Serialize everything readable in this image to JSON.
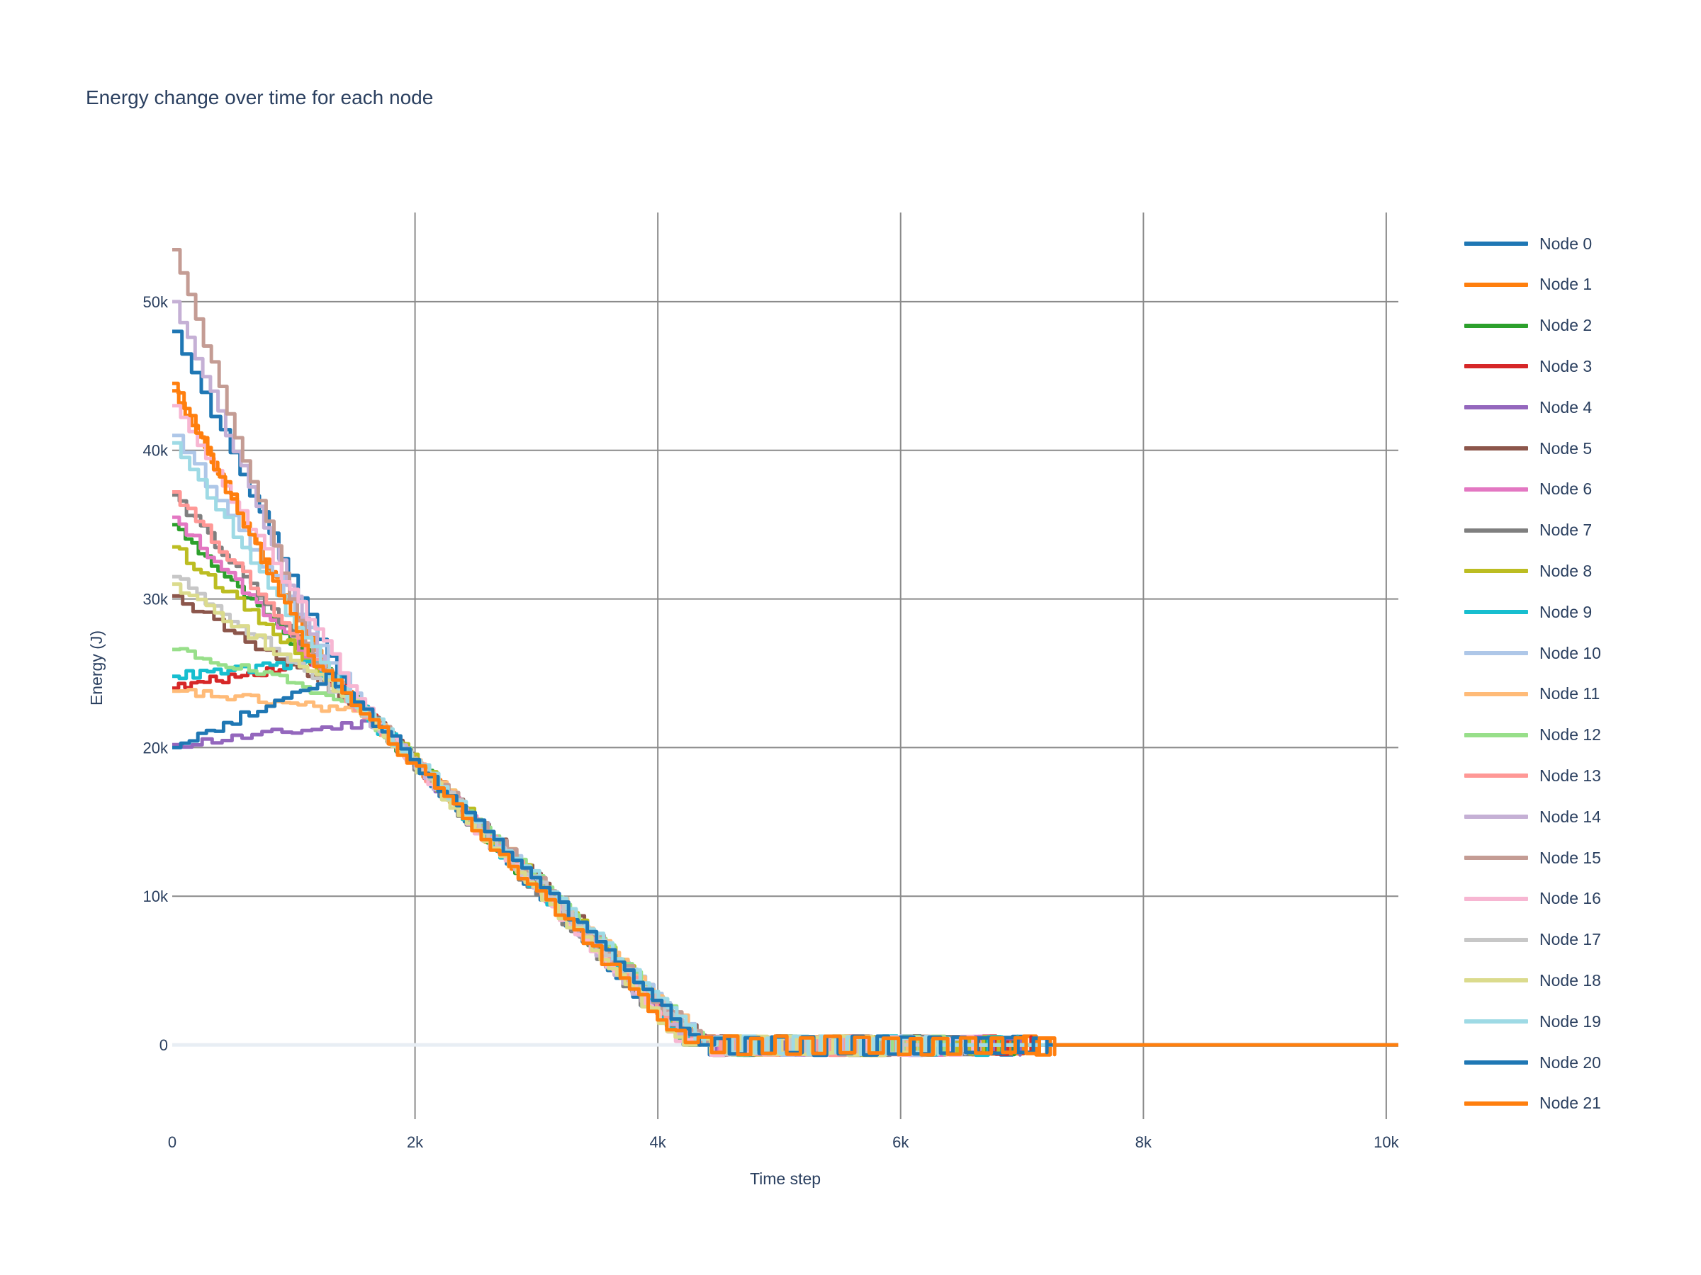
{
  "chart_data": {
    "type": "line",
    "title": "Energy change over time for each node",
    "xlabel": "Time step",
    "ylabel": "Energy (J)",
    "xlim": [
      0,
      10100
    ],
    "ylim": [
      -5000,
      56000
    ],
    "x_ticks": [
      0,
      2000,
      4000,
      6000,
      8000,
      10000
    ],
    "x_tick_labels": [
      "0",
      "2k",
      "4k",
      "6k",
      "8k",
      "10k"
    ],
    "y_ticks": [
      0,
      10000,
      20000,
      30000,
      40000,
      50000
    ],
    "y_tick_labels": [
      "0",
      "10k",
      "20k",
      "30k",
      "40k",
      "50k"
    ],
    "grid": true,
    "legend_position": "right",
    "convergence": {
      "x_start": 1300,
      "y_start": 24500,
      "x_end": 4300,
      "y_end": 0,
      "oscillation_end_x": 7200,
      "x_max": 10100
    },
    "series": [
      {
        "name": "Node 0",
        "color": "#1f77b4",
        "start": 48000,
        "max_step": 7100
      },
      {
        "name": "Node 1",
        "color": "#ff7f0e",
        "start": 44000,
        "max_step": 7200
      },
      {
        "name": "Node 2",
        "color": "#2ca02c",
        "start": 35000,
        "max_step": 6900
      },
      {
        "name": "Node 3",
        "color": "#d62728",
        "start": 24000,
        "max_step": 7000
      },
      {
        "name": "Node 4",
        "color": "#9467bd",
        "start": 20200,
        "max_step": 6900
      },
      {
        "name": "Node 5",
        "color": "#8c564b",
        "start": 30200,
        "max_step": 6800
      },
      {
        "name": "Node 6",
        "color": "#e377c2",
        "start": 35500,
        "max_step": 6700
      },
      {
        "name": "Node 7",
        "color": "#7f7f7f",
        "start": 37000,
        "max_step": 6600
      },
      {
        "name": "Node 8",
        "color": "#bcbd22",
        "start": 33500,
        "max_step": 6800
      },
      {
        "name": "Node 9",
        "color": "#17becf",
        "start": 24800,
        "max_step": 6900
      },
      {
        "name": "Node 10",
        "color": "#aec7e8",
        "start": 41000,
        "max_step": 6500
      },
      {
        "name": "Node 11",
        "color": "#ffbb78",
        "start": 23800,
        "max_step": 6400
      },
      {
        "name": "Node 12",
        "color": "#98df8a",
        "start": 26600,
        "max_step": 6300
      },
      {
        "name": "Node 13",
        "color": "#ff9896",
        "start": 37200,
        "max_step": 6200
      },
      {
        "name": "Node 14",
        "color": "#c5b0d5",
        "start": 50000,
        "max_step": 6100
      },
      {
        "name": "Node 15",
        "color": "#c49c94",
        "start": 53500,
        "max_step": 6000
      },
      {
        "name": "Node 16",
        "color": "#f7b6d2",
        "start": 43000,
        "max_step": 6500
      },
      {
        "name": "Node 17",
        "color": "#c7c7c7",
        "start": 31500,
        "max_step": 6000
      },
      {
        "name": "Node 18",
        "color": "#dbdb8d",
        "start": 31000,
        "max_step": 6200
      },
      {
        "name": "Node 19",
        "color": "#9edae5",
        "start": 40500,
        "max_step": 6300
      },
      {
        "name": "Node 20",
        "color": "#1f77b4",
        "start": 20000,
        "max_step": 7100
      },
      {
        "name": "Node 21",
        "color": "#ff7f0e",
        "start": 44500,
        "max_step": 7200
      }
    ]
  }
}
